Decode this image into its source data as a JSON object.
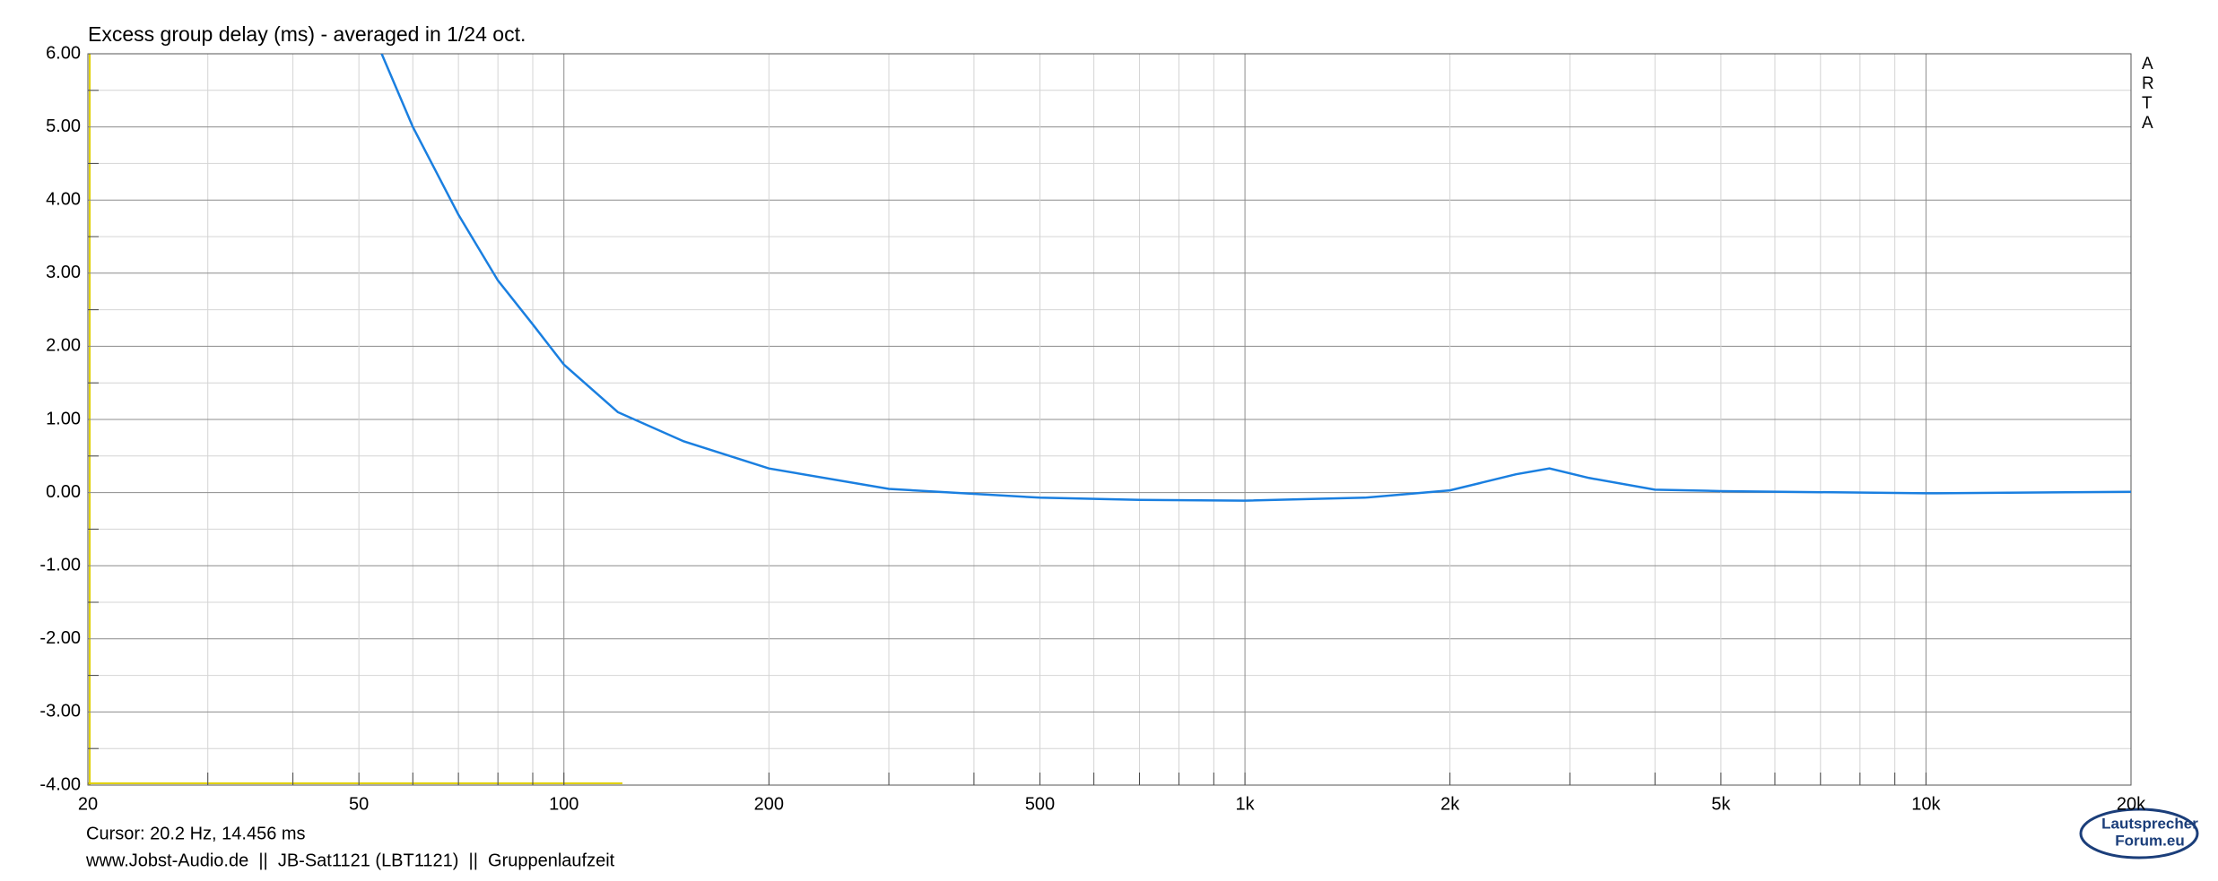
{
  "chart_data": {
    "type": "line",
    "title": "Excess group delay (ms) - averaged in 1/24 oct.",
    "cursor_text": "Cursor: 20.2 Hz, 14.456 ms",
    "footer": "www.Jobst-Audio.de  ||  JB-Sat1121 (LBT1121)  ||  Gruppenlaufzeit",
    "brand": [
      "A",
      "R",
      "T",
      "A"
    ],
    "logo": [
      "Lautsprecher",
      "Forum.eu"
    ],
    "x_scale": "log",
    "xlim": [
      20,
      20000
    ],
    "ylim": [
      -4,
      6
    ],
    "xticks": [
      20,
      50,
      100,
      200,
      500,
      {
        "value": 1000,
        "label": "1k"
      },
      {
        "value": 2000,
        "label": "2k"
      },
      {
        "value": 5000,
        "label": "5k"
      },
      {
        "value": 10000,
        "label": "10k"
      },
      {
        "value": 20000,
        "label": "20k"
      }
    ],
    "x_minor_ticks": [
      30,
      40,
      60,
      70,
      80,
      90,
      300,
      400,
      600,
      700,
      800,
      900,
      3000,
      4000,
      6000,
      7000,
      8000,
      9000
    ],
    "yticks": [
      {
        "value": -4,
        "label": "-4.00"
      },
      {
        "value": -3,
        "label": "-3.00"
      },
      {
        "value": -2,
        "label": "-2.00"
      },
      {
        "value": -1,
        "label": "-1.00"
      },
      {
        "value": 0,
        "label": "0.00"
      },
      {
        "value": 1,
        "label": "1.00"
      },
      {
        "value": 2,
        "label": "2.00"
      },
      {
        "value": 3,
        "label": "3.00"
      },
      {
        "value": 4,
        "label": "4.00"
      },
      {
        "value": 5,
        "label": "5.00"
      },
      {
        "value": 6,
        "label": "6.00"
      }
    ],
    "y_minor_ticks": [
      -3.5,
      -2.5,
      -1.5,
      -0.5,
      0.5,
      1.5,
      2.5,
      3.5,
      4.5,
      5.5
    ],
    "grid": true,
    "series": [
      {
        "color": "#1a7fe0",
        "x": [
          54,
          60,
          70,
          80,
          90,
          100,
          120,
          150,
          200,
          300,
          500,
          700,
          1000,
          1500,
          2000,
          2500,
          2800,
          3200,
          4000,
          5000,
          10000,
          20000
        ],
        "values": [
          6.0,
          5.0,
          3.8,
          2.9,
          2.3,
          1.75,
          1.1,
          0.7,
          0.33,
          0.05,
          -0.07,
          -0.1,
          -0.11,
          -0.07,
          0.03,
          0.25,
          0.33,
          0.2,
          0.04,
          0.02,
          -0.01,
          0.01
        ]
      }
    ]
  }
}
